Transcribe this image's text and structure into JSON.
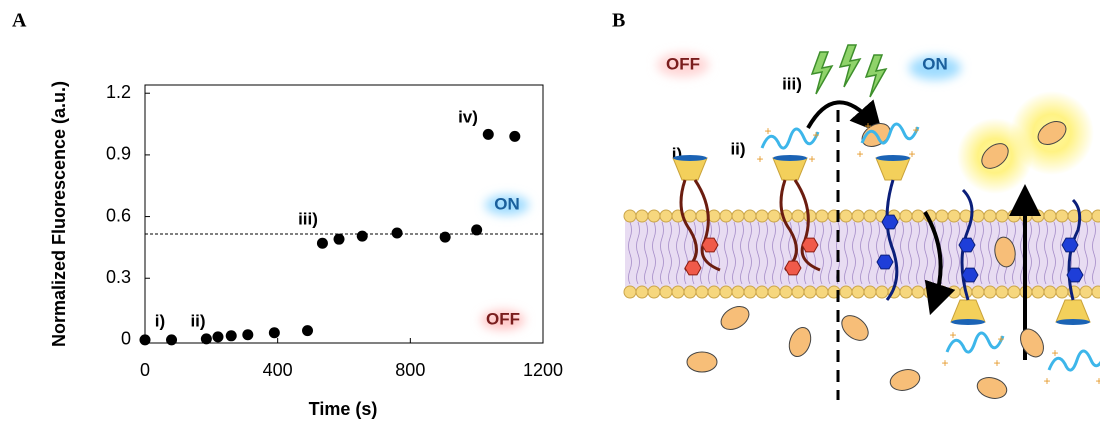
{
  "panel_labels": [
    "A",
    "B"
  ],
  "chart_data": {
    "type": "scatter",
    "x_label": "Time (s)",
    "y_label": "Normalized Fluorescence (a.u.)",
    "x": [
      0,
      80,
      185,
      220,
      260,
      310,
      390,
      490,
      535,
      585,
      655,
      760,
      905,
      1000,
      1035,
      1115
    ],
    "values": [
      0,
      0,
      0.005,
      0.015,
      0.02,
      0.025,
      0.035,
      0.045,
      0.47,
      0.49,
      0.505,
      0.52,
      0.5,
      0.535,
      1.0,
      0.99
    ],
    "color": "#000000",
    "xlim": [
      0,
      1200
    ],
    "xticks": [
      0,
      400,
      800,
      1200
    ],
    "ylim": [
      -0.015,
      1.24
    ],
    "yticks": [
      0,
      0.3,
      0.6,
      0.9,
      1.2
    ],
    "reference_line": 0.515,
    "annotations": [
      "i)",
      "ii)",
      "iii)",
      "iv)",
      "ON",
      "OFF"
    ]
  },
  "diagram": {
    "off": "OFF",
    "on": "ON",
    "steps": [
      "i)",
      "ii)",
      "iii)"
    ]
  }
}
